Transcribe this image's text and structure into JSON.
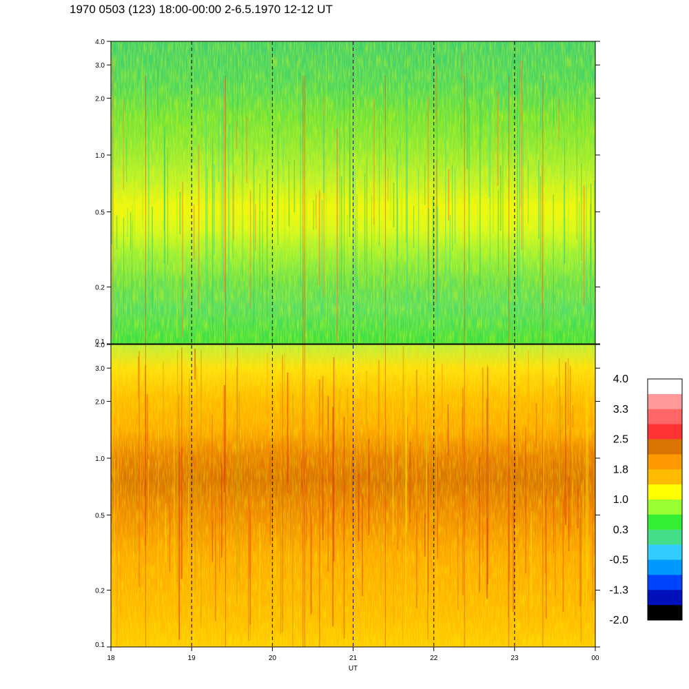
{
  "title": "1970 0503 (123) 18:00-00:00 2-6.5.1970  12-12 UT",
  "chart_data": {
    "type": "heatmap",
    "title": "1970 0503 (123) 18:00-00:00 2-6.5.1970  12-12 UT",
    "xlabel": "UT",
    "x_ticks": [
      "18",
      "19",
      "20",
      "21",
      "22",
      "23",
      "00"
    ],
    "x_range": [
      18,
      24
    ],
    "panels": [
      {
        "y_ticks": [
          "0.1",
          "0.2",
          "0.5",
          "1.0",
          "2.0",
          "3.0",
          "4.0"
        ],
        "y_tick_values": [
          0.1,
          0.2,
          0.5,
          1.0,
          2.0,
          3.0,
          4.0
        ],
        "y_scale": "log",
        "y_range": [
          0.1,
          4.0
        ],
        "dominant_level_band": "0.3 to 1.0 (green / yellow)"
      },
      {
        "y_ticks": [
          "0.1",
          "0.2",
          "0.5",
          "1.0",
          "2.0",
          "3.0",
          "4.0"
        ],
        "y_tick_values": [
          0.1,
          0.2,
          0.5,
          1.0,
          2.0,
          3.0,
          4.0
        ],
        "y_scale": "log",
        "y_range": [
          0.1,
          4.0
        ],
        "dominant_level_band": "1.0 to 2.5 (yellow / orange)"
      }
    ],
    "colorbar": {
      "labels": [
        "4.0",
        "3.3",
        "2.5",
        "1.8",
        "1.0",
        "0.3",
        "-0.5",
        "-1.3",
        "-2.0"
      ],
      "range": [
        -2.0,
        4.0
      ],
      "colors_top_to_bottom": [
        "#ffffff",
        "#ff9999",
        "#ff6666",
        "#ff3333",
        "#d97400",
        "#ff9900",
        "#ffbb00",
        "#ffff00",
        "#99ff33",
        "#33ee33",
        "#44dd88",
        "#33ccff",
        "#0099ff",
        "#0044ff",
        "#0011bb",
        "#000000"
      ]
    },
    "grid": "dashed vertical lines at each hour"
  }
}
